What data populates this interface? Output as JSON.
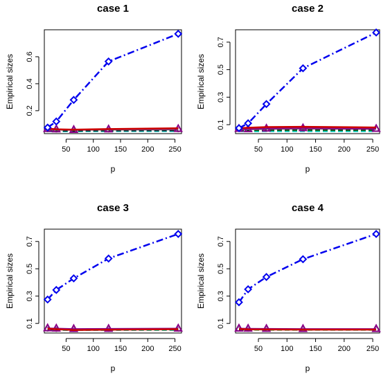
{
  "chart_data": [
    {
      "type": "line",
      "title": "case 1",
      "xlabel": "p",
      "ylabel": "Empirical sizes",
      "x": [
        16,
        32,
        64,
        128,
        256
      ],
      "xlim": [
        10,
        262
      ],
      "ylim": [
        0.03,
        0.8
      ],
      "xticks": [
        50,
        100,
        150,
        200,
        250
      ],
      "yticks": [
        0.2,
        0.4,
        0.6
      ],
      "ytick_labels": [
        "0.2",
        "0.4",
        "0.6"
      ],
      "grid": false,
      "series": [
        {
          "color": "#0000ee",
          "dash": "dashdot",
          "marker": "diamond",
          "width": 2.5,
          "values": [
            0.075,
            0.12,
            0.28,
            0.565,
            0.77
          ]
        },
        {
          "color": "#cc0000",
          "dash": "solid",
          "marker": "none",
          "width": 2.5,
          "values": [
            0.068,
            0.062,
            0.06,
            0.064,
            0.07
          ]
        },
        {
          "color": "#880088",
          "dash": "solid",
          "marker": "triangle",
          "width": 2,
          "values": [
            0.065,
            0.062,
            0.058,
            0.062,
            0.065
          ]
        },
        {
          "color": "#777777",
          "dash": "solid",
          "marker": "circle",
          "width": 1.5,
          "values": [
            0.058,
            0.056,
            0.055,
            0.057,
            0.058
          ]
        },
        {
          "color": "#000000",
          "dash": "dashed",
          "marker": "none",
          "width": 1.5,
          "values": [
            0.052,
            0.05,
            0.05,
            0.051,
            0.052
          ]
        },
        {
          "color": "#00cccc",
          "dash": "dashed",
          "marker": "none",
          "width": 1.5,
          "values": [
            0.045,
            0.044,
            0.045,
            0.046,
            0.046
          ]
        },
        {
          "color": "#22aa22",
          "dash": "dashed",
          "marker": "none",
          "width": 1.5,
          "values": [
            0.048,
            0.047,
            0.047,
            0.048,
            0.048
          ]
        }
      ]
    },
    {
      "type": "line",
      "title": "case 2",
      "xlabel": "p",
      "ylabel": "Empirical sizes",
      "x": [
        16,
        32,
        64,
        128,
        256
      ],
      "xlim": [
        10,
        262
      ],
      "ylim": [
        0.035,
        0.79
      ],
      "xticks": [
        50,
        100,
        150,
        200,
        250
      ],
      "yticks": [
        0.1,
        0.3,
        0.5,
        0.7
      ],
      "ytick_labels": [
        "0.1",
        "0.3",
        "0.5",
        "0.7"
      ],
      "grid": false,
      "series": [
        {
          "color": "#0000ee",
          "dash": "dashdot",
          "marker": "diamond",
          "width": 2.5,
          "values": [
            0.075,
            0.11,
            0.25,
            0.51,
            0.77
          ]
        },
        {
          "color": "#cc0000",
          "dash": "solid",
          "marker": "none",
          "width": 2.5,
          "values": [
            0.075,
            0.078,
            0.083,
            0.085,
            0.08
          ]
        },
        {
          "color": "#880088",
          "dash": "solid",
          "marker": "triangle",
          "width": 2,
          "values": [
            0.07,
            0.068,
            0.072,
            0.075,
            0.07
          ]
        },
        {
          "color": "#777777",
          "dash": "solid",
          "marker": "circle",
          "width": 1.5,
          "values": [
            0.065,
            0.064,
            0.066,
            0.068,
            0.066
          ]
        },
        {
          "color": "#000000",
          "dash": "dashed",
          "marker": "none",
          "width": 1.5,
          "values": [
            0.06,
            0.06,
            0.061,
            0.062,
            0.061
          ]
        },
        {
          "color": "#00cccc",
          "dash": "dashed",
          "marker": "none",
          "width": 1.5,
          "values": [
            0.05,
            0.049,
            0.05,
            0.05,
            0.05
          ]
        },
        {
          "color": "#22aa22",
          "dash": "dashed",
          "marker": "none",
          "width": 1.5,
          "values": [
            0.055,
            0.054,
            0.055,
            0.056,
            0.055
          ]
        }
      ]
    },
    {
      "type": "line",
      "title": "case 3",
      "xlabel": "p",
      "ylabel": "Empirical sizes",
      "x": [
        16,
        32,
        64,
        128,
        256
      ],
      "xlim": [
        10,
        262
      ],
      "ylim": [
        0.03,
        0.79
      ],
      "xticks": [
        50,
        100,
        150,
        200,
        250
      ],
      "yticks": [
        0.1,
        0.3,
        0.5,
        0.7
      ],
      "ytick_labels": [
        "0.1",
        "0.3",
        "0.5",
        "0.7"
      ],
      "grid": false,
      "series": [
        {
          "color": "#0000ee",
          "dash": "dashdot",
          "marker": "diamond",
          "width": 2.5,
          "values": [
            0.275,
            0.345,
            0.43,
            0.575,
            0.755
          ]
        },
        {
          "color": "#cc0000",
          "dash": "solid",
          "marker": "none",
          "width": 2.5,
          "values": [
            0.062,
            0.058,
            0.052,
            0.054,
            0.058
          ]
        },
        {
          "color": "#880088",
          "dash": "solid",
          "marker": "triangle",
          "width": 2,
          "values": [
            0.065,
            0.063,
            0.06,
            0.061,
            0.063
          ]
        },
        {
          "color": "#777777",
          "dash": "solid",
          "marker": "circle",
          "width": 1.5,
          "values": [
            0.058,
            0.056,
            0.055,
            0.056,
            0.057
          ]
        },
        {
          "color": "#000000",
          "dash": "dashed",
          "marker": "none",
          "width": 1.5,
          "values": [
            0.055,
            0.054,
            0.053,
            0.054,
            0.055
          ]
        },
        {
          "color": "#00cccc",
          "dash": "dashed",
          "marker": "none",
          "width": 1.5,
          "values": [
            0.052,
            0.051,
            0.05,
            0.051,
            0.052
          ]
        },
        {
          "color": "#22aa22",
          "dash": "dashed",
          "marker": "none",
          "width": 1.5,
          "values": [
            0.05,
            0.05,
            0.049,
            0.05,
            0.05
          ]
        }
      ]
    },
    {
      "type": "line",
      "title": "case 4",
      "xlabel": "p",
      "ylabel": "Empirical sizes",
      "x": [
        16,
        32,
        64,
        128,
        256
      ],
      "xlim": [
        10,
        262
      ],
      "ylim": [
        0.03,
        0.79
      ],
      "xticks": [
        50,
        100,
        150,
        200,
        250
      ],
      "yticks": [
        0.1,
        0.3,
        0.5,
        0.7
      ],
      "ytick_labels": [
        "0.1",
        "0.3",
        "0.5",
        "0.7"
      ],
      "grid": false,
      "series": [
        {
          "color": "#0000ee",
          "dash": "dashdot",
          "marker": "diamond",
          "width": 2.5,
          "values": [
            0.255,
            0.35,
            0.44,
            0.57,
            0.755
          ]
        },
        {
          "color": "#cc0000",
          "dash": "solid",
          "marker": "none",
          "width": 2.5,
          "values": [
            0.06,
            0.057,
            0.056,
            0.055,
            0.055
          ]
        },
        {
          "color": "#880088",
          "dash": "solid",
          "marker": "triangle",
          "width": 2,
          "values": [
            0.063,
            0.062,
            0.061,
            0.06,
            0.06
          ]
        },
        {
          "color": "#777777",
          "dash": "solid",
          "marker": "circle",
          "width": 1.5,
          "values": [
            0.058,
            0.057,
            0.057,
            0.056,
            0.056
          ]
        },
        {
          "color": "#000000",
          "dash": "dashed",
          "marker": "none",
          "width": 1.5,
          "values": [
            0.055,
            0.055,
            0.054,
            0.054,
            0.054
          ]
        },
        {
          "color": "#00cccc",
          "dash": "dashed",
          "marker": "none",
          "width": 1.5,
          "values": [
            0.06,
            0.06,
            0.06,
            0.059,
            0.058
          ]
        },
        {
          "color": "#22aa22",
          "dash": "dashed",
          "marker": "none",
          "width": 1.5,
          "values": [
            0.052,
            0.052,
            0.051,
            0.051,
            0.051
          ]
        }
      ]
    }
  ]
}
